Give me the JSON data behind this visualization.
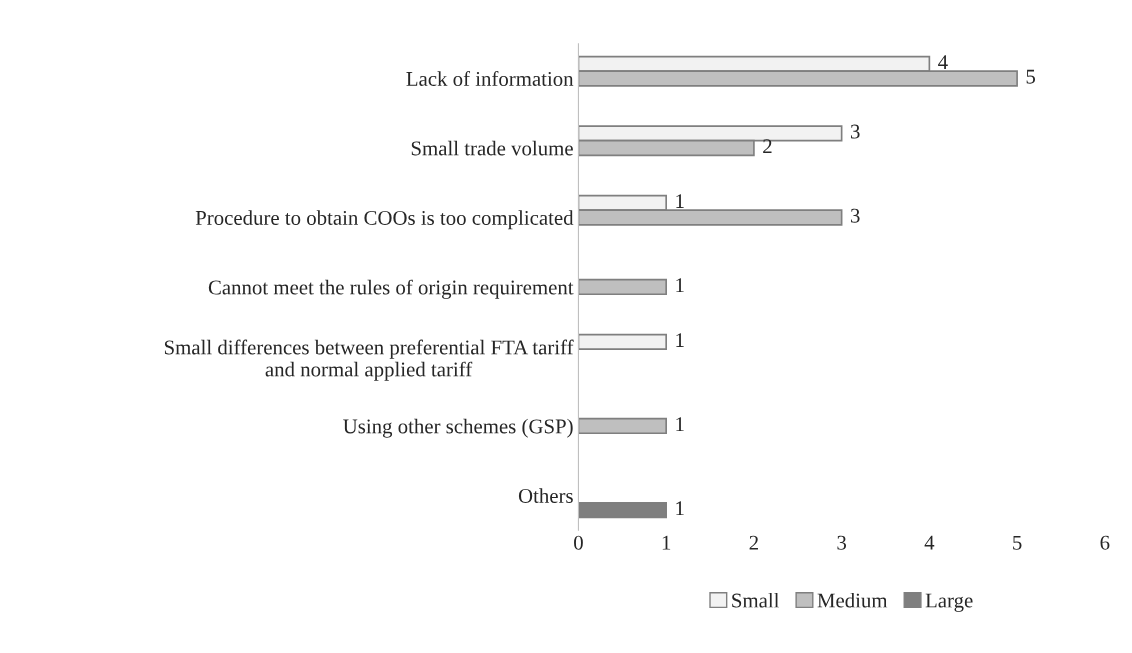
{
  "chart_data": {
    "type": "bar",
    "orientation": "horizontal",
    "categories": [
      "Lack of information",
      "Small trade volume",
      "Procedure to obtain COOs is too complicated",
      "Cannot meet the rules of origin requirement",
      "Small differences between preferential FTA tariff\nand normal applied tariff",
      "Using other schemes (GSP)",
      "Others"
    ],
    "series": [
      {
        "name": "Small",
        "color": "#f2f2f2",
        "values": [
          4,
          3,
          1,
          null,
          1,
          null,
          null
        ]
      },
      {
        "name": "Medium",
        "color": "#bfbfbf",
        "values": [
          5,
          2,
          3,
          1,
          null,
          1,
          null
        ]
      },
      {
        "name": "Large",
        "color": "#7f7f7f",
        "values": [
          null,
          null,
          null,
          null,
          null,
          null,
          1
        ]
      }
    ],
    "xlim": [
      0,
      6
    ],
    "xticks": [
      0,
      1,
      2,
      3,
      4,
      5,
      6
    ],
    "data_labels": true,
    "legend": "bottom",
    "grid": false
  }
}
